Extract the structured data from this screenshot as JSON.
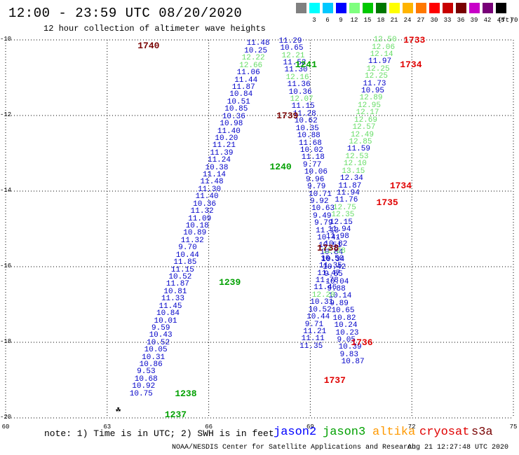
{
  "header": {
    "title": "12:00 - 23:59 UTC 08/20/2020",
    "subtitle": "12 hour collection of altimeter wave heights"
  },
  "legend": {
    "unit": "(ft)",
    "colors": [
      "#808080",
      "#00ffff",
      "#00c8ff",
      "#0000ff",
      "#7fff7f",
      "#00c800",
      "#007800",
      "#ffff00",
      "#ffb400",
      "#ff7800",
      "#ff0000",
      "#c80000",
      "#780000",
      "#c800c8",
      "#780078",
      "#000000"
    ],
    "labels": [
      "3",
      "6",
      "9",
      "12",
      "15",
      "18",
      "21",
      "24",
      "27",
      "30",
      "33",
      "36",
      "39",
      "42",
      "45",
      "70"
    ]
  },
  "map": {
    "lat_labels": [
      "-10",
      "-12",
      "-14",
      "-16",
      "-18",
      "-20"
    ],
    "lon_labels": [
      "60",
      "63",
      "66",
      "69",
      "72",
      "75"
    ],
    "lon_range": [
      60,
      75
    ],
    "lat_range": [
      -20,
      -10
    ],
    "colors": {
      "jason2": "#0000c8",
      "jason3": "#00a000",
      "jason3_light": "#66dd66",
      "cryosat": "#e00000",
      "s3a": "#780000"
    },
    "time_labels": [
      {
        "text": "1740",
        "lon": 63.9,
        "lat": -10.15,
        "sat": "s3a"
      },
      {
        "text": "1241",
        "lon": 68.55,
        "lat": -10.65,
        "sat": "jason3"
      },
      {
        "text": "1739",
        "lon": 68.0,
        "lat": -12.0,
        "sat": "s3a"
      },
      {
        "text": "1240",
        "lon": 67.8,
        "lat": -13.35,
        "sat": "jason3"
      },
      {
        "text": "1738",
        "lon": 69.2,
        "lat": -15.5,
        "sat": "s3a"
      },
      {
        "text": "1239",
        "lon": 66.3,
        "lat": -16.4,
        "sat": "jason3"
      },
      {
        "text": "1238",
        "lon": 65.0,
        "lat": -19.35,
        "sat": "jason3"
      },
      {
        "text": "1237",
        "lon": 64.7,
        "lat": -19.9,
        "sat": "jason3"
      },
      {
        "text": "1733",
        "lon": 71.75,
        "lat": -10.0,
        "sat": "cryosat"
      },
      {
        "text": "1734",
        "lon": 71.65,
        "lat": -10.65,
        "sat": "cryosat"
      },
      {
        "text": "1734",
        "lon": 71.35,
        "lat": -13.85,
        "sat": "cryosat"
      },
      {
        "text": "1735",
        "lon": 70.95,
        "lat": -14.3,
        "sat": "cryosat"
      },
      {
        "text": "1736",
        "lon": 70.2,
        "lat": -18.0,
        "sat": "cryosat"
      },
      {
        "text": "1737",
        "lon": 69.4,
        "lat": -19.0,
        "sat": "cryosat"
      }
    ],
    "tracks": [
      {
        "sat": "jason2",
        "lon0": 67.45,
        "lat0": -10.12,
        "step_lon": -0.072,
        "step_lat": -0.193,
        "values": [
          "11.48",
          "10.25",
          "12.22",
          "12.66",
          "11.06",
          "11.44",
          "11.87",
          "10.84",
          "10.51",
          "10.85",
          "10.36",
          "10.98",
          "11.40",
          "10.20",
          "11.21",
          "11.39",
          "11.24",
          "10.38",
          "11.14",
          "11.48",
          "11.30",
          "11.40",
          "10.36",
          "11.32",
          "11.09",
          "10.18",
          "10.89",
          "11.32",
          "9.70",
          "10.44",
          "11.85",
          "11.15",
          "10.52",
          "11.87",
          "10.81",
          "11.33",
          "11.45",
          "10.84",
          "10.01",
          "9.59",
          "10.43",
          "10.52",
          "10.05",
          "10.31",
          "10.86",
          "9.53",
          "10.68",
          "10.92",
          "10.75"
        ],
        "light": [
          2,
          3
        ]
      },
      {
        "sat": "jason2",
        "lon0": 68.4,
        "lat0": -10.05,
        "step_lon": 0.042,
        "step_lat": -0.193,
        "start_lon": 68.4,
        "values": [
          "11.29",
          "10.65",
          "12.21",
          "11.52",
          "11.30",
          "12.16",
          "11.36",
          "10.36",
          "12.07",
          "11.15",
          "11.28",
          "10.62",
          "10.35",
          "10.88",
          "11.68",
          "10.02",
          "11.18",
          "9.77",
          "10.06",
          "9.96",
          "9.79",
          "10.71",
          "9.92",
          "10.63",
          "9.49",
          "9.79",
          "11.13",
          "10.41",
          "10.51",
          "10.84",
          "10.34",
          "10.42",
          "9.85",
          "10.04",
          "9.88",
          "10.14",
          "9.89",
          "10.65",
          "10.82",
          "10.24",
          "10.23",
          "9.05",
          "10.39",
          "9.83",
          "10.87"
        ],
        "light": [
          2,
          5,
          8
        ]
      },
      {
        "sat": "jason3",
        "lon0": 71.2,
        "lat0": -10.02,
        "step_lon": -0.052,
        "step_lat": -0.193,
        "values": [
          "12.50",
          "12.06",
          "12.14",
          "11.97",
          "12.25",
          "12.25",
          "11.73",
          "10.95",
          "12.89",
          "12.95",
          "12.17",
          "12.69",
          "12.57",
          "12.49",
          "12.85",
          "11.59",
          "12.53",
          "12.10",
          "13.15",
          "12.34",
          "11.87",
          "11.94",
          "11.76",
          "12.75",
          "12.35",
          "12.15",
          "11.94",
          "11.98",
          "10.82",
          "12.28",
          "10.50",
          "11.35",
          "11.47",
          "11.78",
          "11.46",
          "12.20",
          "10.31",
          "10.52",
          "10.44",
          "9.71",
          "11.21",
          "11.11",
          "11.35"
        ],
        "dark": [
          3,
          6,
          7,
          15,
          19,
          20,
          21,
          22,
          25,
          26,
          27,
          28,
          30,
          31,
          32,
          33,
          34,
          36,
          37,
          38,
          39,
          40,
          41,
          42
        ]
      }
    ]
  },
  "footer": {
    "note": "note: 1) Time is in UTC; 2) SWH is in feet",
    "satellites": [
      {
        "name": "jason2",
        "color": "#0000ff"
      },
      {
        "name": "jason3",
        "color": "#00a000"
      },
      {
        "name": "altika",
        "color": "#ff9900"
      },
      {
        "name": "cryosat",
        "color": "#e00000"
      },
      {
        "name": "s3a",
        "color": "#780000"
      }
    ],
    "credit": "NOAA/NESDIS Center for Satellite Applications and Research",
    "timestamp": "Aug 21 12:27:48 UTC 2020"
  }
}
